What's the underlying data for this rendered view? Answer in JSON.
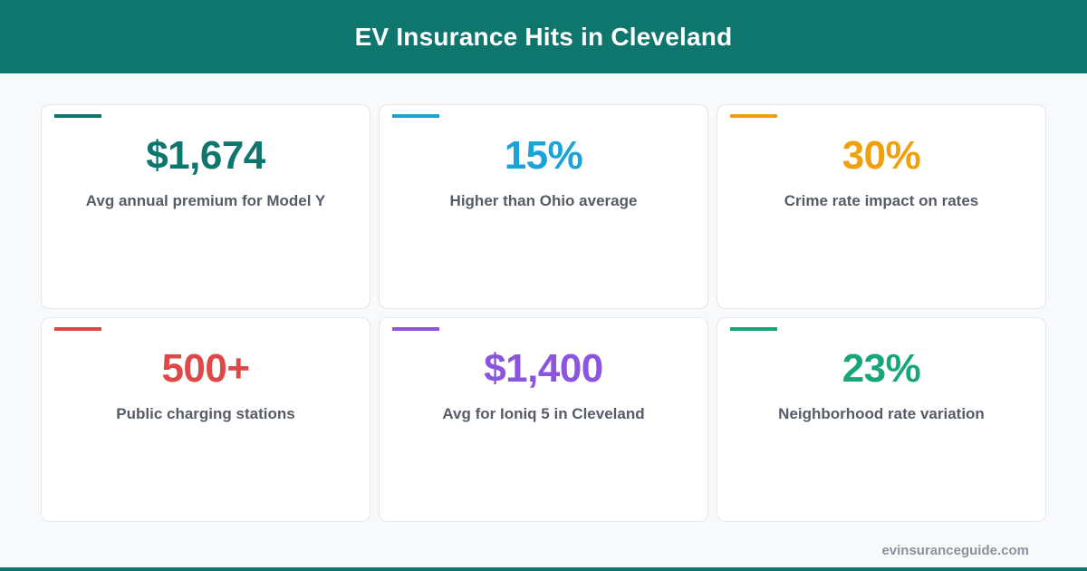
{
  "header": {
    "title": "EV Insurance Hits in Cleveland"
  },
  "cards": [
    {
      "value": "$1,674",
      "label": "Avg annual premium for Model Y",
      "color": "#0f766e"
    },
    {
      "value": "15%",
      "label": "Higher than Ohio average",
      "color": "#1ba3d8"
    },
    {
      "value": "30%",
      "label": "Crime rate impact on rates",
      "color": "#f0a00c"
    },
    {
      "value": "500+",
      "label": "Public charging stations",
      "color": "#e04848"
    },
    {
      "value": "$1,400",
      "label": "Avg for Ioniq 5 in Cleveland",
      "color": "#8b55e0"
    },
    {
      "value": "23%",
      "label": "Neighborhood rate variation",
      "color": "#17a67a"
    }
  ],
  "footer": {
    "url": "evinsuranceguide.com"
  },
  "colors": {
    "brand": "#0f766e",
    "background": "#f8f9fb"
  }
}
